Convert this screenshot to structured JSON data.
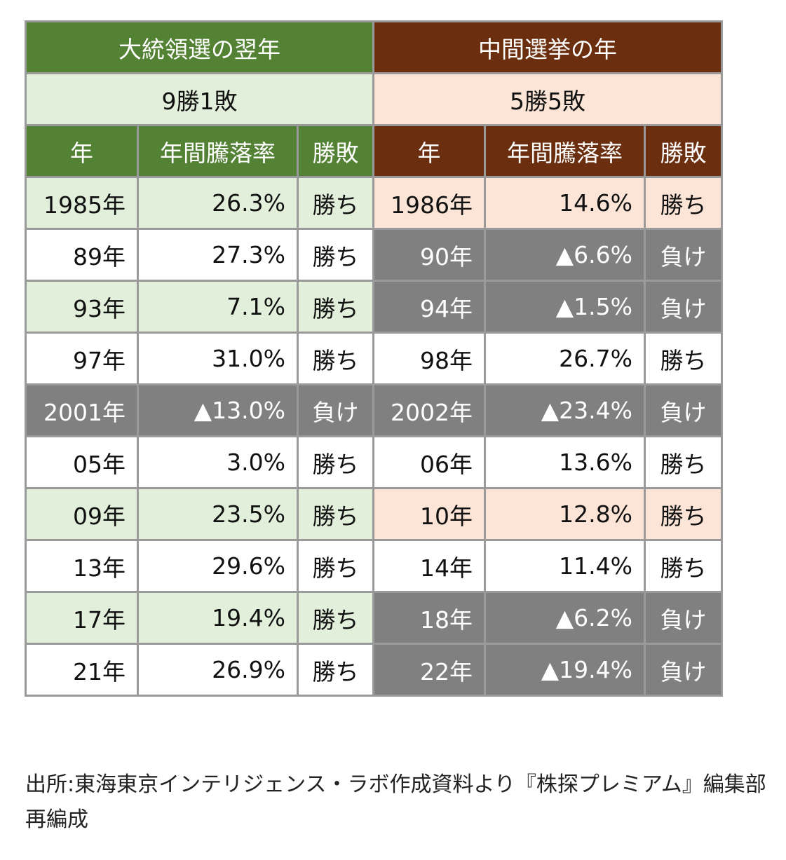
{
  "groups": [
    {
      "title": "大統領選の翌年",
      "record": "9勝1敗"
    },
    {
      "title": "中間選挙の年",
      "record": "5勝5敗"
    }
  ],
  "columns": [
    "年",
    "年間騰落率",
    "勝敗"
  ],
  "colors": {
    "green_header": "#548235",
    "brown_header": "#6b2f0f",
    "green_light": "#e2efda",
    "pink_light": "#fce4d6",
    "loss_gray": "#808080"
  },
  "rows": [
    {
      "l": {
        "year": "1985年",
        "rate": "26.3%",
        "result": "勝ち",
        "bg": "gl"
      },
      "r": {
        "year": "1986年",
        "rate": "14.6%",
        "result": "勝ち",
        "bg": "pl"
      }
    },
    {
      "l": {
        "year": "89年",
        "rate": "27.3%",
        "result": "勝ち",
        "bg": "wh"
      },
      "r": {
        "year": "90年",
        "rate": "▲6.6%",
        "result": "負け",
        "bg": "gy"
      }
    },
    {
      "l": {
        "year": "93年",
        "rate": "7.1%",
        "result": "勝ち",
        "bg": "gl"
      },
      "r": {
        "year": "94年",
        "rate": "▲1.5%",
        "result": "負け",
        "bg": "gy"
      }
    },
    {
      "l": {
        "year": "97年",
        "rate": "31.0%",
        "result": "勝ち",
        "bg": "wh"
      },
      "r": {
        "year": "98年",
        "rate": "26.7%",
        "result": "勝ち",
        "bg": "wh"
      }
    },
    {
      "l": {
        "year": "2001年",
        "rate": "▲13.0%",
        "result": "負け",
        "bg": "gy"
      },
      "r": {
        "year": "2002年",
        "rate": "▲23.4%",
        "result": "負け",
        "bg": "gy"
      }
    },
    {
      "l": {
        "year": "05年",
        "rate": "3.0%",
        "result": "勝ち",
        "bg": "wh"
      },
      "r": {
        "year": "06年",
        "rate": "13.6%",
        "result": "勝ち",
        "bg": "wh"
      }
    },
    {
      "l": {
        "year": "09年",
        "rate": "23.5%",
        "result": "勝ち",
        "bg": "gl"
      },
      "r": {
        "year": "10年",
        "rate": "12.8%",
        "result": "勝ち",
        "bg": "pl"
      }
    },
    {
      "l": {
        "year": "13年",
        "rate": "29.6%",
        "result": "勝ち",
        "bg": "wh"
      },
      "r": {
        "year": "14年",
        "rate": "11.4%",
        "result": "勝ち",
        "bg": "wh"
      }
    },
    {
      "l": {
        "year": "17年",
        "rate": "19.4%",
        "result": "勝ち",
        "bg": "gl"
      },
      "r": {
        "year": "18年",
        "rate": "▲6.2%",
        "result": "負け",
        "bg": "gy"
      }
    },
    {
      "l": {
        "year": "21年",
        "rate": "26.9%",
        "result": "勝ち",
        "bg": "wh"
      },
      "r": {
        "year": "22年",
        "rate": "▲19.4%",
        "result": "負け",
        "bg": "gy"
      }
    }
  ],
  "caption": "出所:東海東京インテリジェンス・ラボ作成資料より『株探プレミアム』編集部再編成"
}
